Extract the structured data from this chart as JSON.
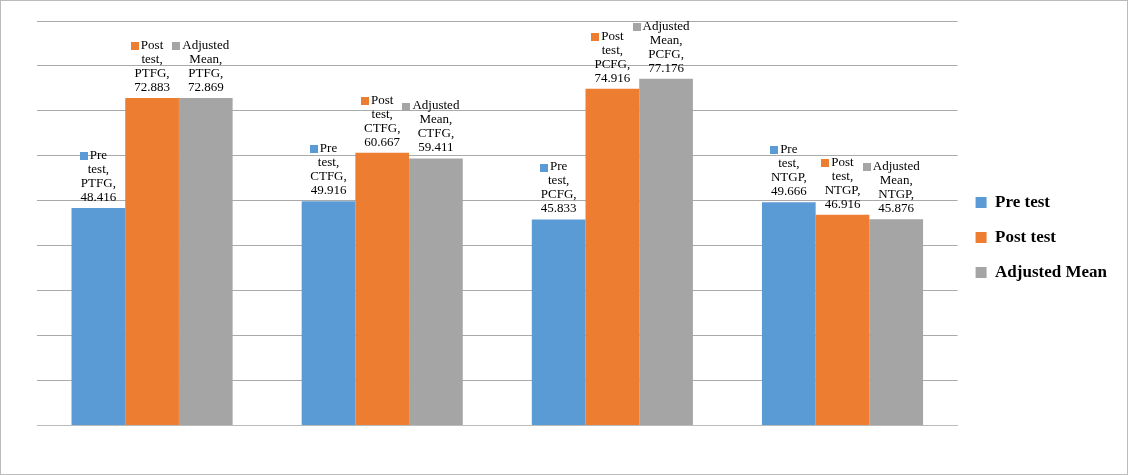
{
  "chart_data": {
    "type": "bar",
    "categories": [
      null,
      null,
      null,
      null
    ],
    "series": [
      {
        "name": "Pre test",
        "color": "#5b9bd5",
        "values": [
          48.416,
          49.916,
          45.833,
          49.666
        ],
        "value_labels": [
          "Pre test, PTFG, 48.416",
          "Pre test, CTFG, 49.916",
          "Pre test, PCFG, 45.833",
          "Pre test, NTGP, 49.666"
        ]
      },
      {
        "name": "Post test",
        "color": "#ed7d31",
        "values": [
          72.883,
          60.667,
          74.916,
          46.916
        ],
        "value_labels": [
          "Post test, PTFG, 72.883",
          "Post test, CTFG, 60.667",
          "Post test, PCFG, 74.916",
          "Post test, NTGP, 46.916"
        ]
      },
      {
        "name": "Adjusted Mean",
        "color": "#a5a5a5",
        "values": [
          72.869,
          59.411,
          77.176,
          45.876
        ],
        "value_labels": [
          "Adjusted Mean, PTFG, 72.869",
          "Adjusted Mean, CTFG, 59.411",
          "Adjusted Mean, PCFG, 77.176",
          "Adjusted Mean, NTGP, 45.876"
        ]
      }
    ],
    "ylim": [
      0,
      90
    ],
    "yticks": [
      {
        "value": 0,
        "label": null
      },
      {
        "value": 10,
        "label": null
      },
      {
        "value": 20,
        "label": null
      },
      {
        "value": 30,
        "label": null
      },
      {
        "value": 40,
        "label": null
      },
      {
        "value": 50,
        "label": null
      },
      {
        "value": 60,
        "label": null
      },
      {
        "value": 70,
        "label": null
      },
      {
        "value": 80,
        "label": null
      },
      {
        "value": 90,
        "label": null
      }
    ],
    "grid": "y",
    "legend": "right"
  }
}
